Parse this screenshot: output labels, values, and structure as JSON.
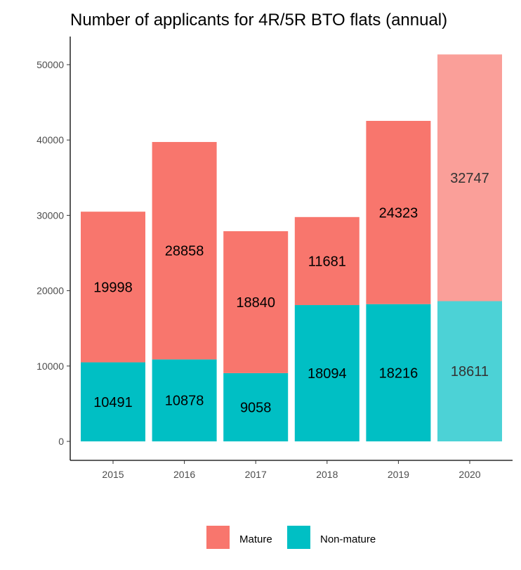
{
  "chart_data": {
    "type": "bar",
    "stacked": true,
    "title": "Number of applicants for 4R/5R BTO flats (annual)",
    "xlabel": "",
    "ylabel": "",
    "categories": [
      "2015",
      "2016",
      "2017",
      "2018",
      "2019",
      "2020"
    ],
    "series": [
      {
        "name": "Non-mature",
        "color": "#00BFC4",
        "values": [
          10491,
          10878,
          9058,
          18094,
          18216,
          18611
        ]
      },
      {
        "name": "Mature",
        "color": "#F8766D",
        "values": [
          19998,
          28858,
          18840,
          11681,
          24323,
          32747
        ]
      }
    ],
    "highlighted_faded_category": "2020",
    "ylim": [
      0,
      52000
    ],
    "yticks": [
      0,
      10000,
      20000,
      30000,
      40000,
      50000
    ],
    "grid": false,
    "legend": {
      "position": "bottom",
      "entries": [
        "Mature",
        "Non-mature"
      ]
    }
  }
}
